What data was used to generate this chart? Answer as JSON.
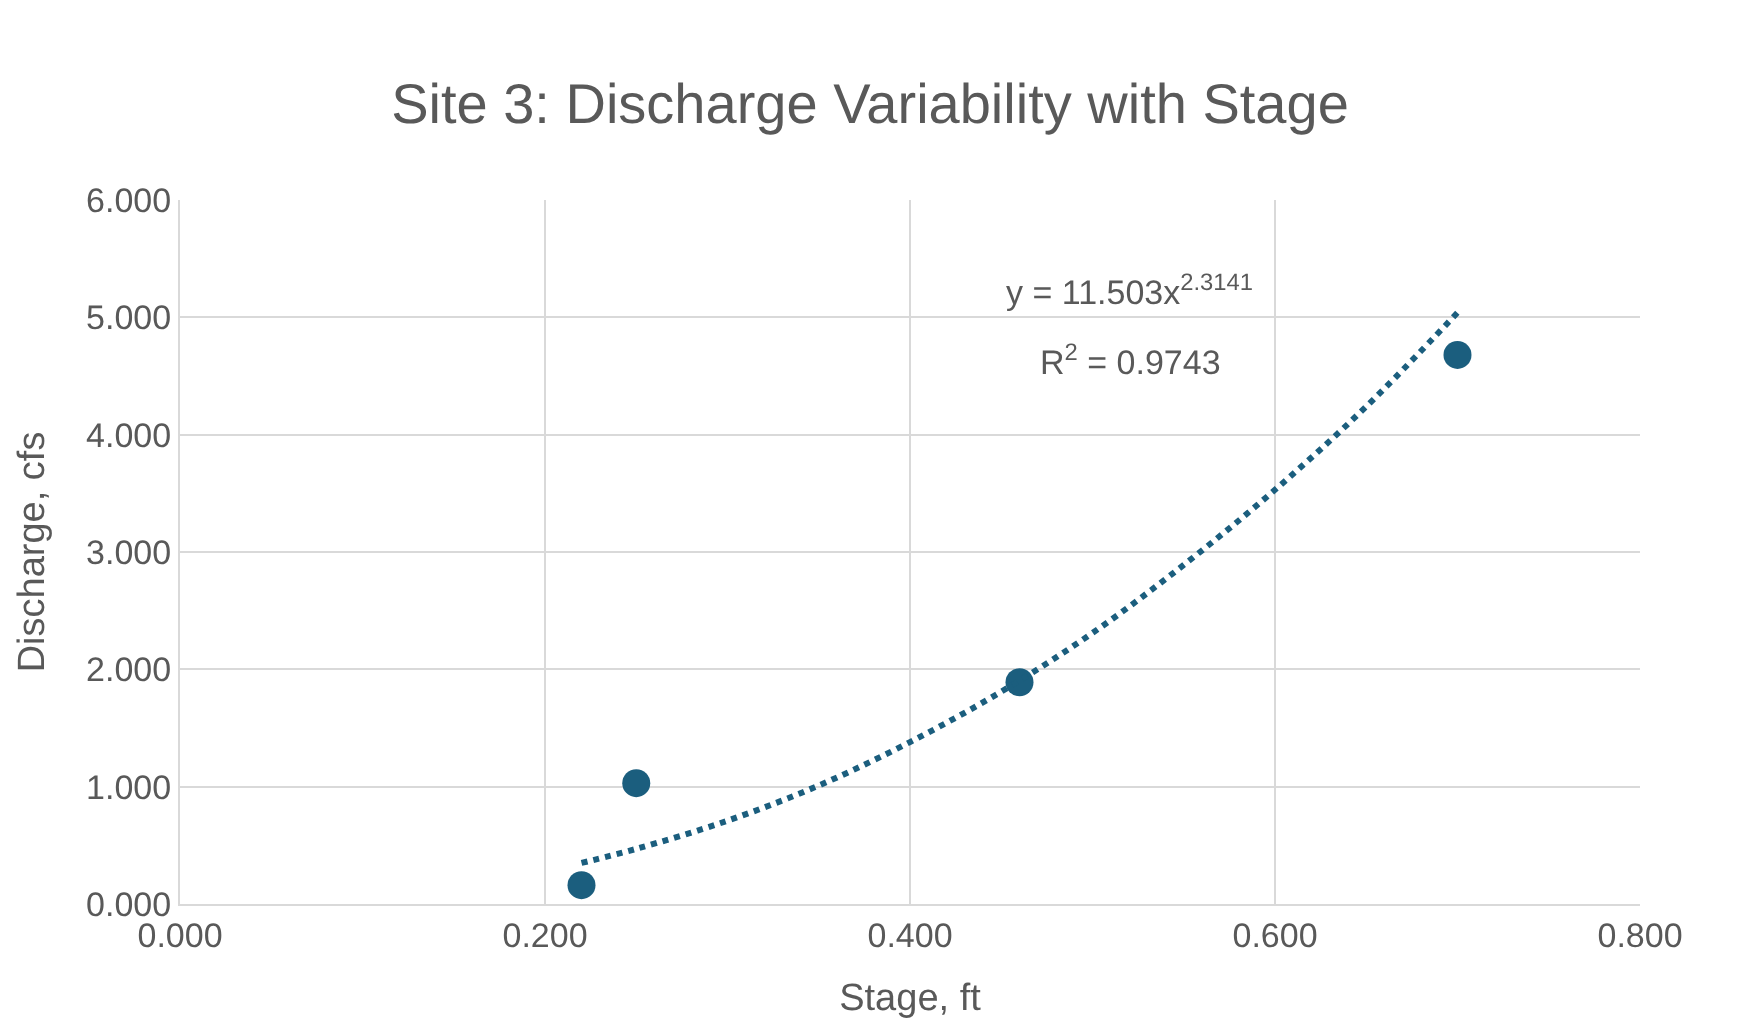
{
  "chart_data": {
    "type": "scatter",
    "title": "Site 3: Discharge Variability with Stage",
    "xlabel": "Stage, ft",
    "ylabel": "Discharge, cfs",
    "xlim": [
      0,
      0.8
    ],
    "ylim": [
      0,
      6
    ],
    "xticks": [
      {
        "value": 0,
        "label": "0.000"
      },
      {
        "value": 0.2,
        "label": "0.200"
      },
      {
        "value": 0.4,
        "label": "0.400"
      },
      {
        "value": 0.6,
        "label": "0.600"
      },
      {
        "value": 0.8,
        "label": "0.800"
      }
    ],
    "yticks": [
      {
        "value": 0,
        "label": "0.000"
      },
      {
        "value": 1,
        "label": "1.000"
      },
      {
        "value": 2,
        "label": "2.000"
      },
      {
        "value": 3,
        "label": "3.000"
      },
      {
        "value": 4,
        "label": "4.000"
      },
      {
        "value": 5,
        "label": "5.000"
      },
      {
        "value": 6,
        "label": "6.000"
      }
    ],
    "grid": true,
    "series": [
      {
        "color": "#1b5e7e",
        "marker": "circle",
        "x": [
          0.22,
          0.25,
          0.46,
          0.7
        ],
        "values": [
          0.16,
          1.03,
          1.89,
          4.68
        ]
      },
      {
        "type": "line",
        "color": "#1b5e7e",
        "marker": "none",
        "line_style": "dotted",
        "x": [
          0.22,
          0.25,
          0.3,
          0.35,
          0.4,
          0.45,
          0.5,
          0.55,
          0.6,
          0.65,
          0.7
        ],
        "values": [
          0.35,
          0.47,
          0.71,
          1.01,
          1.38,
          1.81,
          2.31,
          2.89,
          3.53,
          4.24,
          5.04
        ]
      }
    ],
    "annotations": [
      "y = 11.503x$^{2.3141}$",
      "R$^{2}$ = 0.9743"
    ]
  }
}
